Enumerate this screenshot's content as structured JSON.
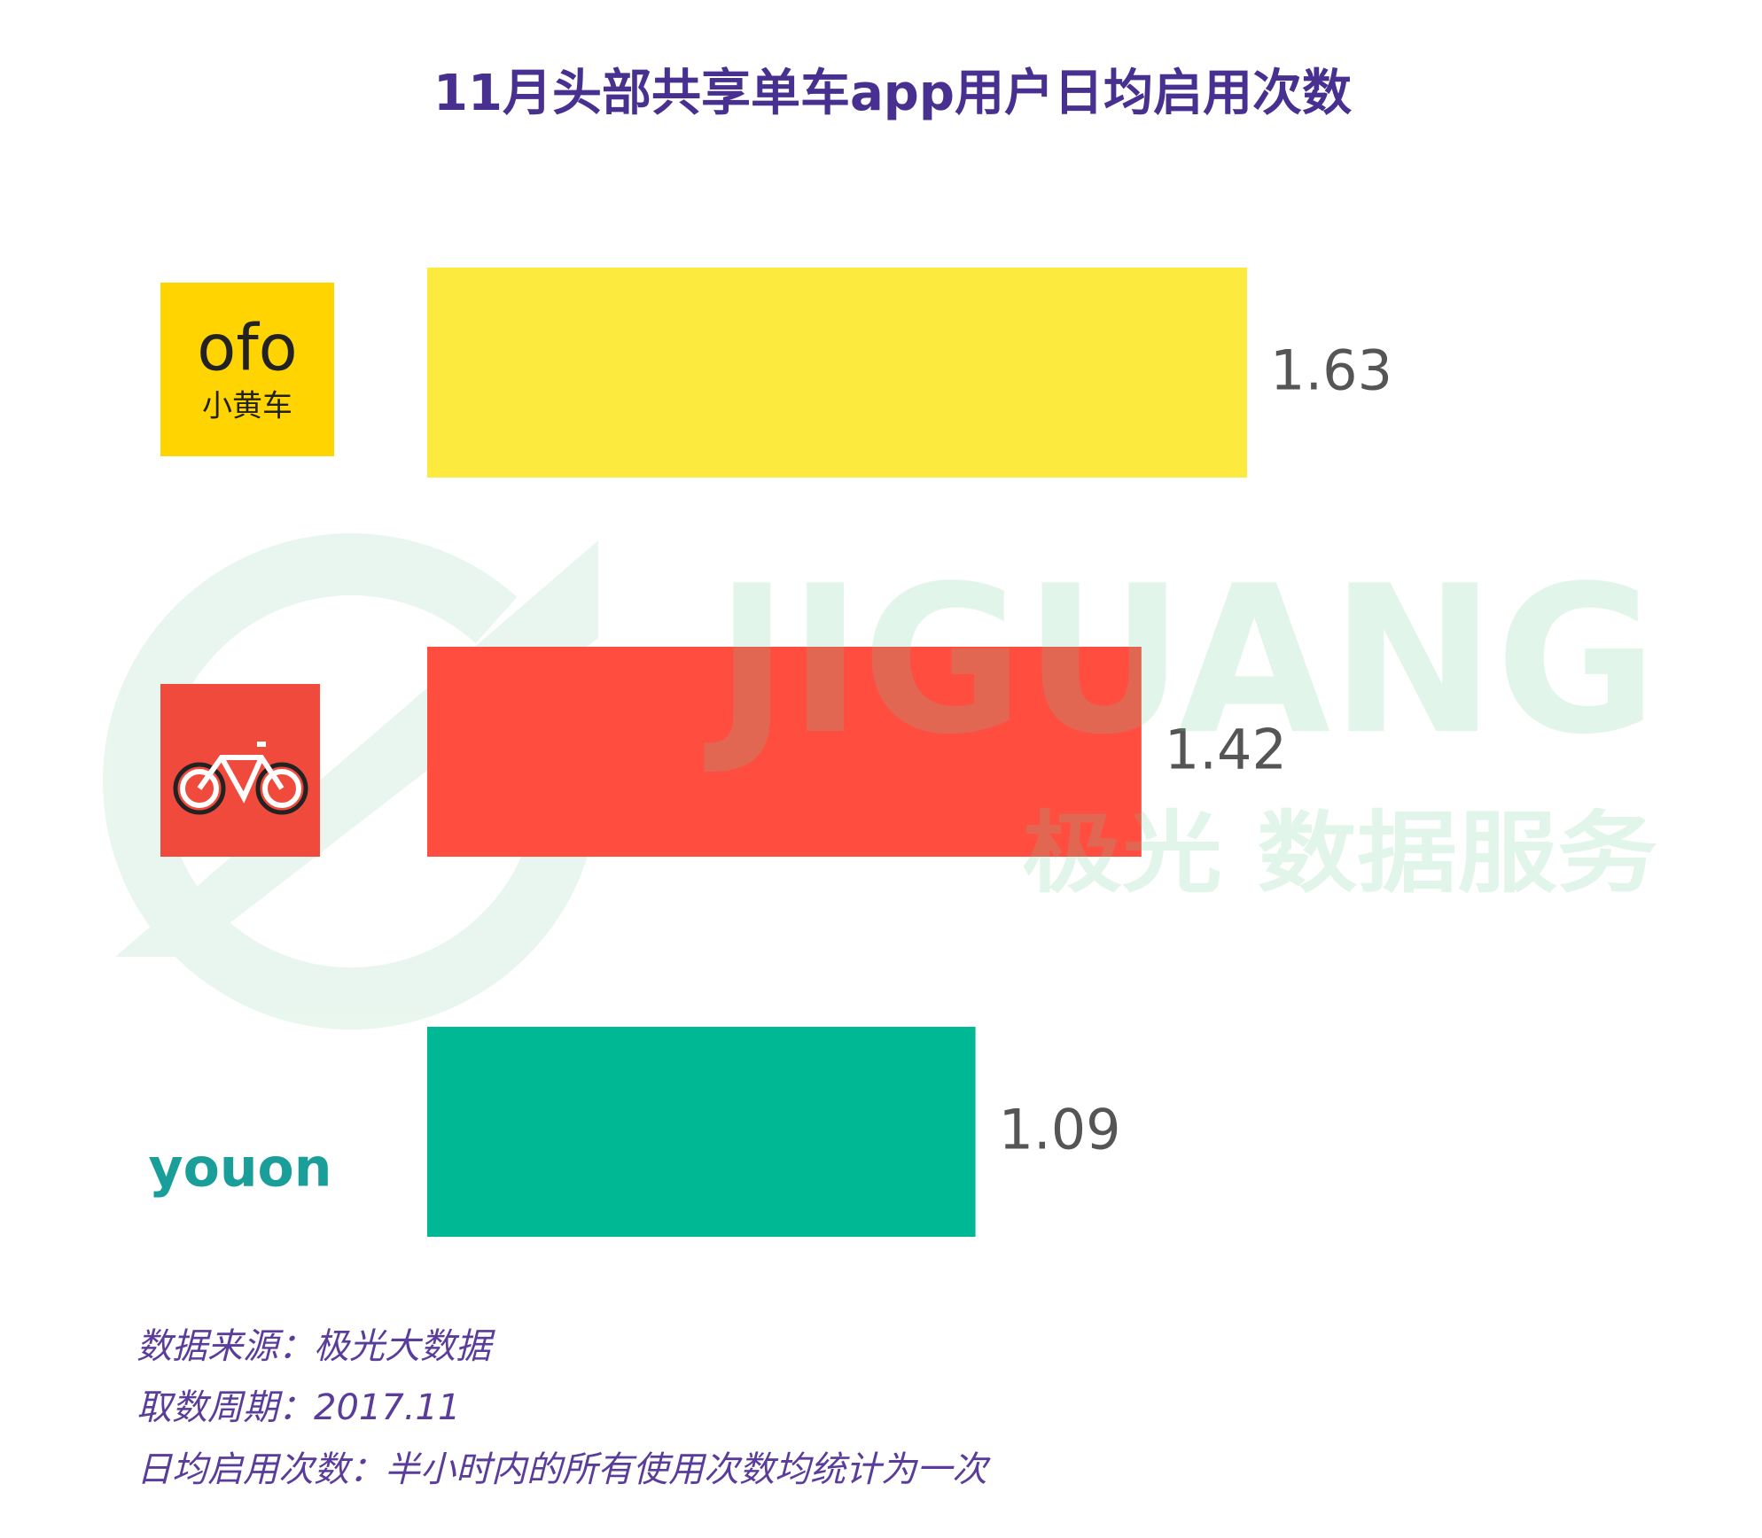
{
  "chart_data": {
    "type": "bar",
    "orientation": "horizontal",
    "title": "11月头部共享单车app用户日均启用次数",
    "categories": [
      "ofo",
      null,
      "youon"
    ],
    "category_sublabels": [
      "小黄车",
      null,
      null
    ],
    "values": [
      1.63,
      1.42,
      1.09
    ],
    "colors": [
      "#fdea3e",
      "#ff4d40",
      "#00b894"
    ],
    "notes": [
      "数据来源：极光大数据",
      "取数周期：2017.11",
      "日均启用次数：半小时内的所有使用次数均统计为一次"
    ],
    "watermark": {
      "title": "JIGUANG",
      "subtitle": "极光 数据服务"
    }
  }
}
